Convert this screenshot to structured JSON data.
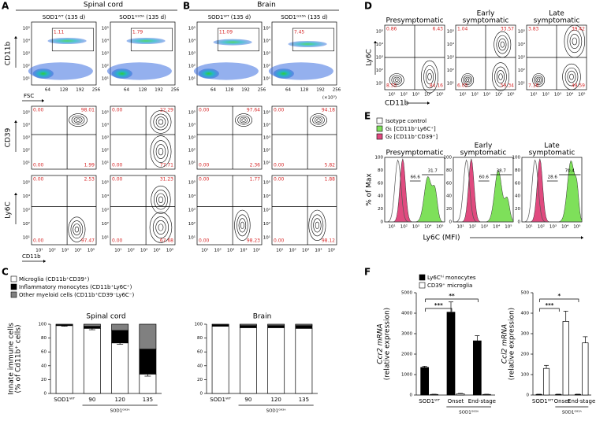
{
  "labels": {
    "A": "A",
    "B": "B",
    "C": "C",
    "D": "D",
    "E": "E",
    "F": "F"
  },
  "flow_axes": {
    "log_ticks": [
      "10¹",
      "10²",
      "10³",
      "10⁴",
      "10⁵"
    ],
    "fsc_ticks": [
      "64",
      "128",
      "192",
      "256"
    ],
    "fsc_label": "FSC",
    "cd11b_label": "CD11b",
    "row_labels": [
      "CD11b",
      "CD39",
      "Ly6C"
    ]
  },
  "panel_a": {
    "title": "Spinal cord",
    "columns": [
      "SOD1ᵂᵀ (135 d)",
      "SOD1ᴳ⁹³ᴬ (135 d)"
    ],
    "gates": [
      "1.11",
      "1.79"
    ],
    "cd39": [
      [
        "0.00",
        "98.01",
        "0.00",
        "1.99"
      ],
      [
        "0.00",
        "22.29",
        "0.00",
        "77.71"
      ]
    ],
    "ly6c": [
      [
        "0.00",
        "2.53",
        "0.00",
        "97.47"
      ],
      [
        "0.00",
        "31.23",
        "0.00",
        "67.68"
      ]
    ]
  },
  "panel_b": {
    "title": "Brain",
    "columns": [
      "SOD1ᵂᵀ (135 d)",
      "SOD1ᴳ⁹³ᴬ (135 d)"
    ],
    "gates": [
      "11.09",
      "7.45"
    ],
    "fsc_unit": "(×10³)",
    "cd39": [
      [
        "0.00",
        "97.64",
        "0.00",
        "2.36"
      ],
      [
        "0.00",
        "94.18",
        "0.00",
        "5.82"
      ]
    ],
    "ly6c": [
      [
        "0.00",
        "1.77",
        "0.00",
        "98.23"
      ],
      [
        "0.00",
        "1.88",
        "0.00",
        "98.12"
      ]
    ]
  },
  "panel_d": {
    "titles": [
      [
        "Presymptomatic"
      ],
      [
        "Early",
        "symptomatic"
      ],
      [
        "Late",
        "symptomatic"
      ]
    ],
    "y_label": "Ly6C",
    "x_label": "CD11b",
    "quadrants": [
      [
        "0.86",
        "6.43",
        "8.55",
        "84.16"
      ],
      [
        "1.04",
        "33.57",
        "6.05",
        "59.34"
      ],
      [
        "3.83",
        "39.42",
        "7.16",
        "49.59"
      ]
    ]
  },
  "panel_e": {
    "legend": [
      {
        "name": "Isotype control",
        "color": "#ffffff"
      },
      {
        "name": "G₁ [CD11b⁺Ly6C⁺]",
        "color": "#7ee05a"
      },
      {
        "name": "G₂ [CD11b⁺CD39⁺]",
        "color": "#e04a7f"
      }
    ],
    "y_label": "% of Max",
    "yticks": [
      0,
      20,
      40,
      60,
      80,
      100
    ],
    "x_label": "Ly6C (MFI)",
    "gates": [
      [
        "66.6",
        "31.7"
      ],
      [
        "60.6",
        "38.7"
      ],
      [
        "28.6",
        "70.4"
      ]
    ]
  },
  "chart_data": [
    {
      "type": "bar",
      "stacked": true,
      "title": "Spinal cord",
      "y_label": [
        "Innate immune cells",
        "(% of Cd11b⁺ cells)"
      ],
      "categories": [
        "SOD1ᵂᵀ",
        "90",
        "120",
        "135"
      ],
      "group_label": "SOD1ᴳ⁹³ᴬ",
      "ylim": [
        0,
        100
      ],
      "yticks": [
        0,
        20,
        40,
        60,
        80,
        100
      ],
      "series": [
        {
          "name": "Microglia (CD11b⁺CD39⁺)",
          "color": "#ffffff",
          "values": [
            98,
            94,
            73,
            28
          ],
          "errors": [
            1,
            2,
            2,
            3
          ]
        },
        {
          "name": "Inflammatory monocytes (CD11b⁺Ly6C⁺)",
          "color": "#000000",
          "values": [
            1,
            3,
            18,
            36
          ]
        },
        {
          "name": "Other myeloid cells (CD11b⁺CD39⁻Ly6C⁻)",
          "color": "#808080",
          "values": [
            1,
            3,
            9,
            36
          ]
        }
      ]
    },
    {
      "type": "bar",
      "stacked": true,
      "title": "Brain",
      "categories": [
        "SOD1ᵂᵀ",
        "90",
        "120",
        "135"
      ],
      "group_label": "SOD1ᴳ⁹³ᴬ",
      "ylim": [
        0,
        100
      ],
      "yticks": [
        0,
        20,
        40,
        60,
        80,
        100
      ],
      "series": [
        {
          "color": "#ffffff",
          "values": [
            97,
            95,
            95,
            94
          ]
        },
        {
          "color": "#000000",
          "values": [
            2,
            3,
            3,
            4
          ]
        },
        {
          "color": "#808080",
          "values": [
            1,
            2,
            2,
            2
          ]
        }
      ]
    },
    {
      "type": "bar",
      "y_label": [
        "Ccr2 mRNA",
        "(relative expression)"
      ],
      "categories": [
        "SOD1ᵂᵀ",
        "Onset",
        "End-stage"
      ],
      "group_label": "SOD1ᴳ⁹³ᴬ",
      "ylim": [
        0,
        5000
      ],
      "yticks": [
        0,
        1000,
        2000,
        3000,
        4000,
        5000
      ],
      "significance": [
        "***",
        "**"
      ],
      "series": [
        {
          "name": "Ly6Cʰⁱ monocytes",
          "color": "#000000",
          "values": [
            1350,
            4050,
            2650
          ],
          "errors": [
            60,
            500,
            250
          ]
        },
        {
          "name": "CD39⁺ microglia",
          "color": "#ffffff",
          "values": [
            30,
            60,
            30
          ],
          "errors": [
            10,
            20,
            10
          ]
        }
      ]
    },
    {
      "type": "bar",
      "y_label": [
        "Ccl2 mRNA",
        "(relative expression)"
      ],
      "categories": [
        "SOD1ᵂᵀ",
        "Onset",
        "End-stage"
      ],
      "group_label": "SOD1ᴳ⁹³ᴬ",
      "ylim": [
        0,
        500
      ],
      "yticks": [
        0,
        100,
        200,
        300,
        400,
        500
      ],
      "significance": [
        "***",
        "*"
      ],
      "series": [
        {
          "color": "#000000",
          "values": [
            3,
            3,
            3
          ],
          "errors": [
            1,
            1,
            1
          ]
        },
        {
          "color": "#ffffff",
          "values": [
            130,
            360,
            255
          ],
          "errors": [
            15,
            50,
            30
          ]
        }
      ]
    }
  ]
}
